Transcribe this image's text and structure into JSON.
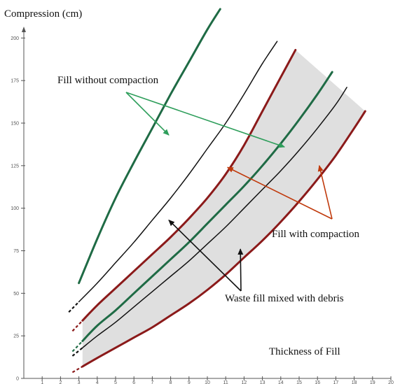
{
  "chart_data": {
    "type": "line",
    "ylabel": "Compression (cm)",
    "xlabel": "Thickness of Fill",
    "xlim": [
      0,
      20
    ],
    "ylim": [
      0,
      210
    ],
    "x_ticks": [
      1,
      2,
      3,
      4,
      5,
      6,
      7,
      8,
      9,
      10,
      11,
      12,
      13,
      14,
      15,
      16,
      17,
      18,
      19,
      20
    ],
    "y_ticks": [
      0,
      25,
      50,
      75,
      100,
      125,
      150,
      175,
      200
    ],
    "grid": false,
    "shaded_band": {
      "fill": "#d9d9d9",
      "between": [
        "compaction-upper",
        "compaction-lower"
      ]
    },
    "series": [
      {
        "id": "no-compaction",
        "color": "#1f6b45",
        "width": 3,
        "x": [
          3.0,
          4.0,
          5.0,
          6.0,
          7.0,
          8.0,
          9.0,
          10.0,
          10.7
        ],
        "y": [
          56,
          82,
          106,
          127,
          147,
          167,
          186,
          205,
          217
        ]
      },
      {
        "id": "thin-upper",
        "color": "#111111",
        "width": 1.5,
        "x": [
          3.0,
          4.0,
          5.0,
          6.0,
          7.0,
          8.0,
          9.0,
          10.0,
          11.0,
          12.0,
          13.0,
          13.8
        ],
        "y": [
          45,
          56,
          68,
          80,
          93,
          106,
          120,
          135,
          150,
          167,
          185,
          198
        ]
      },
      {
        "id": "compaction-upper",
        "color": "#8b1a1a",
        "width": 3,
        "x": [
          3.2,
          4.0,
          5.0,
          6.0,
          7.0,
          8.0,
          9.0,
          10.0,
          11.0,
          12.0,
          13.0,
          14.0,
          14.8
        ],
        "y": [
          34,
          43,
          53,
          63,
          73,
          83,
          94,
          106,
          120,
          137,
          157,
          177,
          193
        ]
      },
      {
        "id": "green-mid",
        "color": "#1f6b45",
        "width": 3,
        "x": [
          3.2,
          4.0,
          5.0,
          6.0,
          7.0,
          8.0,
          9.0,
          10.0,
          11.0,
          12.0,
          13.0,
          14.0,
          15.0,
          16.0,
          16.8
        ],
        "y": [
          22,
          31,
          40,
          50,
          60,
          70,
          80,
          91,
          102,
          113,
          125,
          138,
          152,
          167,
          180
        ]
      },
      {
        "id": "thin-lower",
        "color": "#111111",
        "width": 1.5,
        "x": [
          3.2,
          4.0,
          5.0,
          6.0,
          7.0,
          8.0,
          9.0,
          10.0,
          11.0,
          12.0,
          13.0,
          14.0,
          15.0,
          16.0,
          17.0,
          17.6
        ],
        "y": [
          18,
          25,
          33,
          42,
          51,
          60,
          69,
          79,
          89,
          100,
          111,
          122,
          134,
          147,
          161,
          171
        ]
      },
      {
        "id": "compaction-lower",
        "color": "#8b1a1a",
        "width": 3,
        "x": [
          3.2,
          4.0,
          5.0,
          6.0,
          7.0,
          8.0,
          9.0,
          10.0,
          11.0,
          12.0,
          13.0,
          14.0,
          15.0,
          16.0,
          17.0,
          18.0,
          18.6
        ],
        "y": [
          7,
          12,
          18,
          24,
          30,
          37,
          44,
          52,
          61,
          71,
          81,
          92,
          104,
          117,
          131,
          147,
          157
        ]
      }
    ],
    "annotations": [
      {
        "text": "Fill without compaction",
        "color": "#2e9e5b",
        "arrow_targets": [
          [
            7.9,
            143
          ],
          [
            14.2,
            136
          ]
        ]
      },
      {
        "text": "Fill with compaction",
        "color": "#c0390b",
        "arrow_targets": [
          [
            11.1,
            124
          ],
          [
            16.1,
            125
          ]
        ]
      },
      {
        "text": "Waste fill mixed with debris",
        "color": "#111111",
        "arrow_targets": [
          [
            7.9,
            93
          ],
          [
            11.8,
            76
          ]
        ]
      }
    ]
  }
}
